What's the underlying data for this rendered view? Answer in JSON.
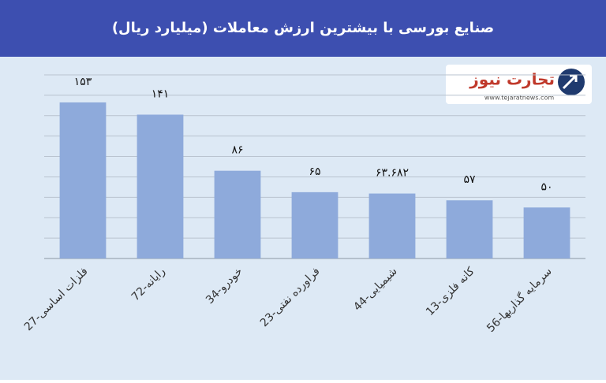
{
  "chart_data": {
    "type": "bar",
    "title": "صنایع بورسی با بیشترین ارزش معاملات  (میلیارد ریال)",
    "categories": [
      "27-فلزات اساسی",
      "72-رایانه",
      "34-خودرو",
      "23-فراورده نفتی",
      "44-شیمیایی",
      "13-کانه فلزی",
      "56-سرمایه گذاریها"
    ],
    "values": [
      153,
      141,
      86,
      65,
      63.682,
      57,
      50
    ],
    "value_labels": [
      "۱۵۳",
      "۱۴۱",
      "۸۶",
      "۶۵",
      "۶۳.۶۸۲",
      "۵۷",
      "۵۰"
    ],
    "color": "#8eaadb",
    "ylim": [
      0,
      180
    ],
    "yticks": [
      0,
      20,
      40,
      60,
      80,
      100,
      120,
      140,
      160,
      180
    ],
    "grid": true
  },
  "logo": {
    "name": "تجارت نیوز",
    "url": "www.tejaratnews.com"
  }
}
